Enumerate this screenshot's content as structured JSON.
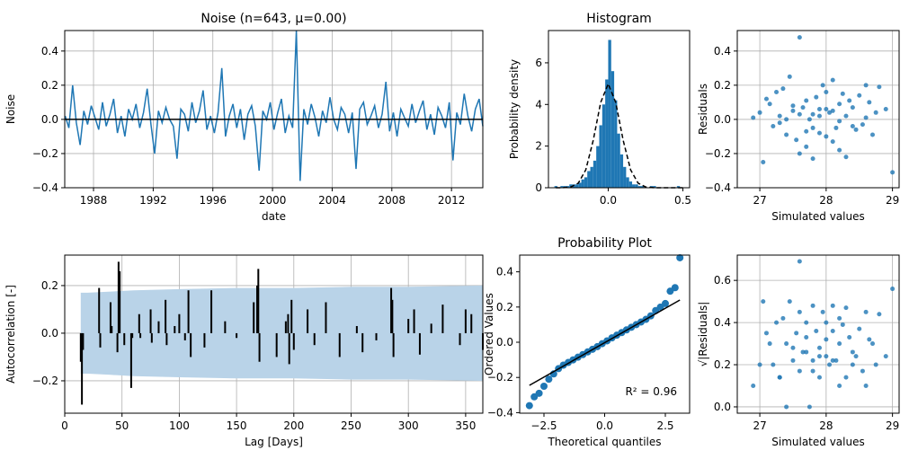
{
  "chart_data": [
    {
      "type": "line",
      "title": "Noise (n=643, μ=0.00)",
      "xlabel": "date",
      "ylabel": "Noise",
      "color": "#1f77b4",
      "grid": true,
      "mean_line": 0,
      "x": [
        1986.1,
        1986.35,
        1986.6,
        1986.85,
        1987.1,
        1987.35,
        1987.6,
        1987.85,
        1988.1,
        1988.35,
        1988.6,
        1988.85,
        1989.1,
        1989.35,
        1989.6,
        1989.85,
        1990.1,
        1990.35,
        1990.6,
        1990.85,
        1991.1,
        1991.35,
        1991.6,
        1991.85,
        1992.1,
        1992.35,
        1992.6,
        1992.85,
        1993.1,
        1993.35,
        1993.6,
        1993.85,
        1994.1,
        1994.35,
        1994.6,
        1994.85,
        1995.1,
        1995.35,
        1995.6,
        1995.85,
        1996.1,
        1996.35,
        1996.6,
        1996.85,
        1997.1,
        1997.35,
        1997.6,
        1997.85,
        1998.1,
        1998.35,
        1998.6,
        1998.85,
        1999.1,
        1999.35,
        1999.6,
        1999.85,
        2000.1,
        2000.35,
        2000.6,
        2000.85,
        2001.1,
        2001.35,
        2001.6,
        2001.85,
        2002.1,
        2002.35,
        2002.6,
        2002.85,
        2003.1,
        2003.35,
        2003.6,
        2003.85,
        2004.1,
        2004.35,
        2004.6,
        2004.85,
        2005.1,
        2005.35,
        2005.6,
        2005.85,
        2006.1,
        2006.35,
        2006.6,
        2006.85,
        2007.1,
        2007.35,
        2007.6,
        2007.85,
        2008.1,
        2008.35,
        2008.6,
        2008.85,
        2009.1,
        2009.35,
        2009.6,
        2009.85,
        2010.1,
        2010.35,
        2010.6,
        2010.85,
        2011.1,
        2011.35,
        2011.6,
        2011.85,
        2012.1,
        2012.35,
        2012.6,
        2012.85,
        2013.1,
        2013.35,
        2013.6,
        2013.85,
        2014.1
      ],
      "values": [
        0.02,
        -0.05,
        0.2,
        -0.02,
        -0.15,
        0.05,
        -0.03,
        0.08,
        0.01,
        -0.06,
        0.1,
        -0.04,
        0.03,
        0.12,
        -0.08,
        0.02,
        -0.1,
        0.06,
        0.0,
        0.09,
        -0.05,
        0.04,
        0.18,
        -0.03,
        -0.2,
        0.05,
        -0.02,
        0.07,
        0.0,
        -0.04,
        -0.23,
        0.06,
        0.03,
        -0.07,
        0.1,
        -0.02,
        0.05,
        0.17,
        -0.06,
        0.02,
        -0.08,
        0.04,
        0.3,
        -0.1,
        0.02,
        0.09,
        -0.05,
        0.06,
        -0.12,
        0.03,
        0.08,
        -0.04,
        -0.3,
        0.05,
        0.0,
        0.1,
        -0.06,
        0.04,
        0.12,
        -0.08,
        0.02,
        -0.05,
        0.52,
        -0.36,
        0.06,
        -0.03,
        0.09,
        0.01,
        -0.1,
        0.05,
        -0.02,
        0.13,
        0.0,
        -0.06,
        0.07,
        0.03,
        -0.08,
        0.04,
        -0.29,
        0.06,
        0.1,
        -0.03,
        0.02,
        0.08,
        -0.05,
        0.03,
        0.22,
        -0.07,
        0.04,
        -0.1,
        0.06,
        0.01,
        -0.04,
        0.09,
        -0.02,
        0.05,
        0.11,
        -0.06,
        0.03,
        -0.09,
        0.07,
        0.02,
        -0.05,
        0.1,
        -0.24,
        0.04,
        -0.03,
        0.15,
        0.02,
        -0.07,
        0.06,
        0.12,
        -0.04
      ],
      "xlim": [
        1986.07,
        2014.1
      ],
      "xticks": [
        1988,
        1992,
        1996,
        2000,
        2004,
        2008,
        2012
      ],
      "ylim": [
        -0.4,
        0.52
      ],
      "yticks": [
        {
          "value": -0.4,
          "label": "−0.4"
        },
        {
          "value": -0.2,
          "label": "−0.2"
        },
        {
          "value": 0,
          "label": "0.0"
        },
        0.2,
        0.4
      ]
    },
    {
      "type": "histogram",
      "title": "Histogram",
      "ylabel": "Probability density",
      "color": "#1f77b4",
      "grid": false,
      "bins": [
        -0.36,
        -0.34,
        -0.32,
        -0.3,
        -0.28,
        -0.26,
        -0.24,
        -0.22,
        -0.2,
        -0.18,
        -0.16,
        -0.14,
        -0.12,
        -0.1,
        -0.08,
        -0.06,
        -0.04,
        -0.02,
        0,
        0.02,
        0.04,
        0.06,
        0.08,
        0.1,
        0.12,
        0.14,
        0.16,
        0.18,
        0.2,
        0.22,
        0.24,
        0.26,
        0.28,
        0.3,
        0.32,
        0.34,
        0.36,
        0.38,
        0.4,
        0.42,
        0.44,
        0.46,
        0.48
      ],
      "values": [
        0.08,
        0,
        0.08,
        0.08,
        0.08,
        0.16,
        0.16,
        0.16,
        0.24,
        0.4,
        0.5,
        0.8,
        1.0,
        1.3,
        2.0,
        3.0,
        4.0,
        5.2,
        7.1,
        5.6,
        4.2,
        2.6,
        1.6,
        1.0,
        0.5,
        0.3,
        0.16,
        0.16,
        0.08,
        0.08,
        0,
        0,
        0.08,
        0.08,
        0,
        0,
        0,
        0,
        0,
        0,
        0,
        0.08
      ],
      "curve": {
        "x": [
          -0.35,
          -0.3,
          -0.25,
          -0.2,
          -0.15,
          -0.1,
          -0.05,
          0,
          0.05,
          0.1,
          0.15,
          0.2,
          0.25,
          0.3,
          0.35,
          0.4,
          0.45,
          0.5
        ],
        "y": [
          0,
          0.004,
          0.038,
          0.22,
          0.86,
          2.28,
          4.1,
          4.99,
          4.1,
          2.28,
          0.86,
          0.22,
          0.038,
          0.004,
          0,
          0,
          0,
          0
        ]
      },
      "xlim": [
        -0.4,
        0.545
      ],
      "xticks": [
        {
          "value": 0,
          "label": "0.0"
        },
        0.5
      ],
      "ylim": [
        0,
        7.55
      ],
      "yticks": [
        0,
        2,
        4,
        6
      ]
    },
    {
      "type": "scatter",
      "xlabel": "Simulated values",
      "ylabel": "Residuals",
      "color": "#1f77b4",
      "grid": true,
      "x": [
        26.9,
        27.0,
        27.05,
        27.1,
        27.15,
        27.2,
        27.25,
        27.3,
        27.35,
        27.4,
        27.45,
        27.5,
        27.55,
        27.6,
        27.6,
        27.65,
        27.7,
        27.7,
        27.75,
        27.8,
        27.8,
        27.85,
        27.9,
        27.9,
        27.95,
        28.0,
        28.0,
        28.05,
        28.1,
        28.1,
        28.15,
        28.2,
        28.2,
        28.25,
        28.3,
        28.3,
        28.35,
        28.4,
        28.45,
        28.5,
        28.55,
        28.6,
        28.65,
        28.7,
        28.75,
        28.8,
        28.9,
        29.0,
        27.6,
        27.8,
        27.4,
        28.1,
        27.3,
        28.4,
        27.5,
        28.6,
        27.7,
        28.2,
        27.9,
        28.0
      ],
      "values": [
        0.01,
        0.04,
        -0.25,
        0.12,
        0.09,
        -0.04,
        0.16,
        0.02,
        0.18,
        -0.09,
        0.25,
        0.05,
        -0.12,
        0.48,
        -0.2,
        0.07,
        0.11,
        -0.16,
        0.0,
        0.03,
        -0.23,
        0.13,
        0.06,
        -0.08,
        0.2,
        0.16,
        -0.1,
        0.04,
        0.23,
        -0.13,
        -0.05,
        0.09,
        -0.18,
        0.15,
        0.02,
        -0.22,
        0.11,
        0.07,
        -0.06,
        0.14,
        -0.03,
        0.2,
        0.1,
        -0.09,
        0.04,
        0.19,
        0.06,
        -0.31,
        0.03,
        -0.05,
        0.0,
        0.05,
        -0.02,
        -0.04,
        0.08,
        0.01,
        -0.07,
        -0.01,
        0.02,
        0.06
      ],
      "xlim": [
        26.66,
        29.1
      ],
      "xticks": [
        27,
        28,
        29
      ],
      "ylim": [
        -0.4,
        0.52
      ],
      "yticks": [
        {
          "value": -0.4,
          "label": "−0.4"
        },
        {
          "value": -0.2,
          "label": "−0.2"
        },
        {
          "value": 0,
          "label": "0.0"
        },
        0.2,
        0.4
      ]
    },
    {
      "type": "acf",
      "xlabel": "Lag [Days]",
      "ylabel": "Autocorrelation [-]",
      "color": "#000000",
      "band_color": "#b9d3e8",
      "grid": true,
      "x": [
        14,
        15,
        16,
        30,
        31,
        40,
        41,
        46,
        47,
        48,
        52,
        58,
        59,
        65,
        66,
        75,
        76,
        82,
        88,
        89,
        96,
        100,
        105,
        108,
        110,
        122,
        128,
        140,
        150,
        165,
        168,
        169,
        170,
        185,
        193,
        195,
        196,
        198,
        200,
        212,
        218,
        228,
        240,
        255,
        260,
        272,
        285,
        286,
        287,
        300,
        305,
        310,
        320,
        330,
        345,
        350,
        355,
        365
      ],
      "values": [
        -0.12,
        -0.3,
        -0.07,
        0.19,
        -0.06,
        0.13,
        0.03,
        -0.08,
        0.3,
        0.26,
        -0.05,
        -0.23,
        -0.02,
        0.08,
        -0.02,
        0.1,
        -0.04,
        0.05,
        0.14,
        -0.05,
        0.03,
        0.08,
        -0.03,
        0.18,
        -0.1,
        -0.06,
        0.18,
        0.05,
        -0.02,
        0.13,
        0.2,
        0.27,
        -0.12,
        -0.1,
        0.05,
        0.08,
        -0.13,
        0.14,
        -0.07,
        0.1,
        -0.05,
        0.13,
        -0.1,
        0.03,
        -0.08,
        -0.03,
        0.19,
        0.14,
        -0.1,
        0.06,
        0.1,
        -0.09,
        0.04,
        0.12,
        -0.05,
        0.1,
        0.08,
        -0.07
      ],
      "band": {
        "x": [
          14,
          20,
          40,
          60,
          100,
          150,
          200,
          250,
          300,
          365
        ],
        "upper": [
          0.17,
          0.17,
          0.175,
          0.18,
          0.185,
          0.19,
          0.19,
          0.195,
          0.195,
          0.2
        ],
        "lower": [
          -0.17,
          -0.17,
          -0.175,
          -0.18,
          -0.185,
          -0.19,
          -0.19,
          -0.195,
          -0.195,
          -0.2
        ]
      },
      "xlim": [
        0,
        365
      ],
      "xticks": [
        0,
        50,
        100,
        150,
        200,
        250,
        300,
        350
      ],
      "ylim": [
        -0.336,
        0.328
      ],
      "yticks": [
        {
          "value": -0.2,
          "label": "−0.2"
        },
        {
          "value": 0,
          "label": "0.0"
        },
        0.2
      ]
    },
    {
      "type": "probplot",
      "title": "Probability Plot",
      "xlabel": "Theoretical quantiles",
      "ylabel": "Ordered Values",
      "annotation": "R² = 0.96",
      "color": "#1f77b4",
      "line_color": "#000000",
      "grid": false,
      "x": [
        -3.1,
        -2.9,
        -2.7,
        -2.5,
        -2.3,
        -2.1,
        -1.9,
        -1.7,
        -1.5,
        -1.3,
        -1.1,
        -0.9,
        -0.7,
        -0.5,
        -0.3,
        -0.1,
        0.1,
        0.3,
        0.5,
        0.7,
        0.9,
        1.1,
        1.3,
        1.5,
        1.7,
        1.9,
        2.1,
        2.3,
        2.5,
        2.7,
        2.9,
        3.1
      ],
      "values": [
        -0.36,
        -0.31,
        -0.29,
        -0.25,
        -0.21,
        -0.18,
        -0.15,
        -0.13,
        -0.115,
        -0.1,
        -0.085,
        -0.07,
        -0.055,
        -0.04,
        -0.025,
        -0.008,
        0.008,
        0.025,
        0.04,
        0.055,
        0.07,
        0.085,
        0.1,
        0.115,
        0.13,
        0.15,
        0.18,
        0.2,
        0.22,
        0.29,
        0.31,
        0.48
      ],
      "fit_line": {
        "x": [
          -3.1,
          3.1
        ],
        "y": [
          -0.245,
          0.24
        ]
      },
      "xlim": [
        -3.5,
        3.5
      ],
      "xticks": [
        {
          "value": -2.5,
          "label": "−2.5"
        },
        {
          "value": 0,
          "label": "0.0"
        },
        2.5
      ],
      "ylim": [
        -0.403,
        0.495
      ],
      "yticks": [
        {
          "value": -0.4,
          "label": "−0.4"
        },
        {
          "value": -0.2,
          "label": "−0.2"
        },
        {
          "value": 0,
          "label": "0.0"
        },
        0.2,
        0.4
      ]
    },
    {
      "type": "scatter",
      "xlabel": "Simulated values",
      "ylabel": "√|Residuals|",
      "color": "#1f77b4",
      "grid": true,
      "x": [
        26.9,
        27.0,
        27.05,
        27.1,
        27.15,
        27.2,
        27.25,
        27.3,
        27.35,
        27.4,
        27.45,
        27.5,
        27.55,
        27.6,
        27.6,
        27.65,
        27.7,
        27.7,
        27.75,
        27.8,
        27.8,
        27.85,
        27.9,
        27.9,
        27.95,
        28.0,
        28.0,
        28.05,
        28.1,
        28.1,
        28.15,
        28.2,
        28.2,
        28.25,
        28.3,
        28.3,
        28.35,
        28.4,
        28.45,
        28.5,
        28.55,
        28.6,
        28.65,
        28.7,
        28.75,
        28.8,
        28.9,
        29.0,
        27.6,
        27.8,
        27.4,
        28.1,
        27.3,
        28.4,
        27.5,
        28.6,
        27.7,
        28.2,
        27.9,
        28.0
      ],
      "values": [
        0.1,
        0.2,
        0.5,
        0.35,
        0.3,
        0.2,
        0.4,
        0.14,
        0.42,
        0.3,
        0.5,
        0.22,
        0.35,
        0.69,
        0.45,
        0.26,
        0.33,
        0.4,
        0.0,
        0.17,
        0.48,
        0.36,
        0.24,
        0.28,
        0.45,
        0.4,
        0.32,
        0.2,
        0.48,
        0.36,
        0.22,
        0.3,
        0.42,
        0.39,
        0.14,
        0.47,
        0.33,
        0.26,
        0.24,
        0.37,
        0.17,
        0.45,
        0.32,
        0.3,
        0.2,
        0.44,
        0.24,
        0.56,
        0.17,
        0.22,
        0.0,
        0.22,
        0.14,
        0.2,
        0.28,
        0.1,
        0.26,
        0.1,
        0.14,
        0.24
      ],
      "xlim": [
        26.66,
        29.1
      ],
      "xticks": [
        27,
        28,
        29
      ],
      "ylim": [
        -0.03,
        0.72
      ],
      "yticks": [
        {
          "value": 0,
          "label": "0.0"
        },
        0.2,
        0.4,
        0.6
      ]
    }
  ]
}
